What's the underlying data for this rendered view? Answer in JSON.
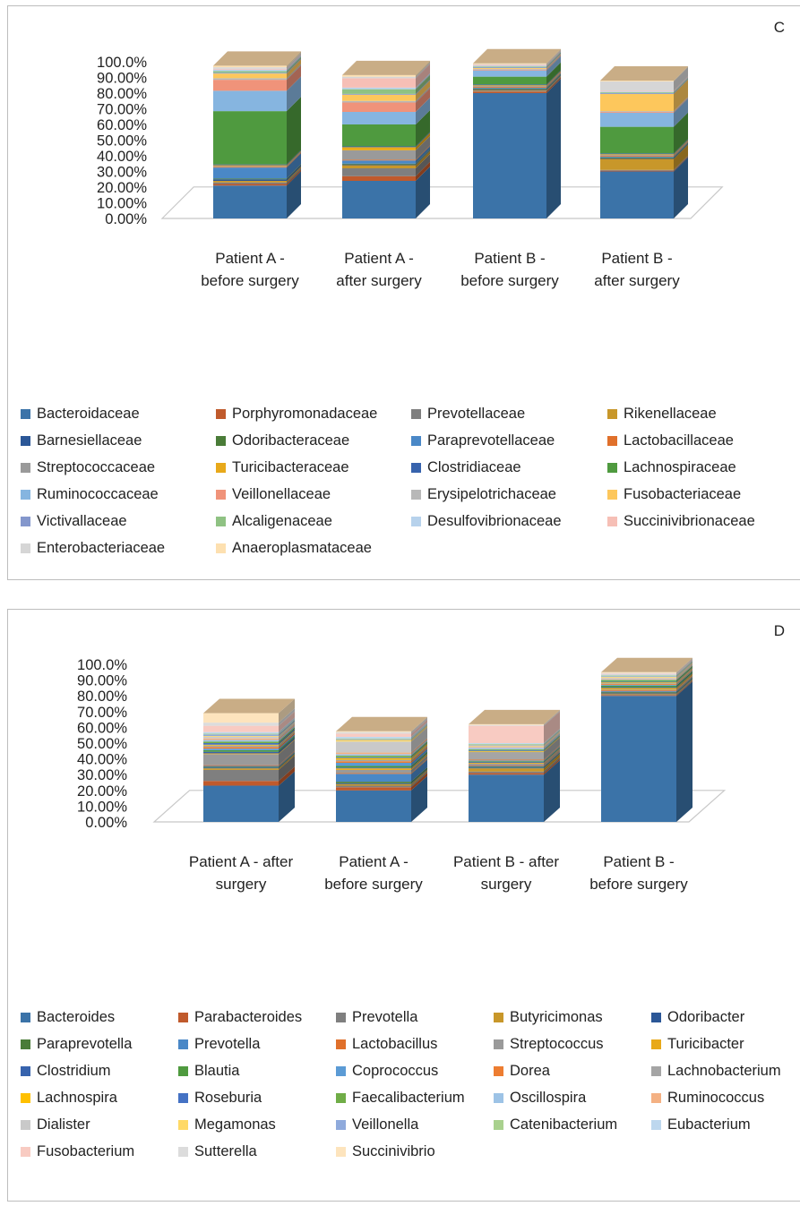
{
  "chart_data": [
    {
      "type": "bar",
      "stacked": true,
      "three_d": true,
      "panel_label": "C",
      "title": "",
      "xlabel": "",
      "ylabel": "",
      "ylim": [
        0,
        100
      ],
      "y_ticks": [
        "0.00%",
        "10.00%",
        "20.00%",
        "30.00%",
        "40.00%",
        "50.00%",
        "60.00%",
        "70.00%",
        "80.00%",
        "90.00%",
        "100.0%"
      ],
      "categories": [
        [
          "Patient A -",
          "before surgery"
        ],
        [
          "Patient A -",
          "after surgery"
        ],
        [
          "Patient B -",
          "before surgery"
        ],
        [
          "Patient B -",
          "after surgery"
        ]
      ],
      "legend_position": "bottom",
      "legend_columns": 4,
      "series": [
        {
          "name": "Bacteroidaceae",
          "color": "#3b73a8",
          "values": [
            21,
            24,
            80,
            30
          ]
        },
        {
          "name": "Porphyromonadaceae",
          "color": "#c05a2c",
          "values": [
            1,
            3,
            1,
            0.5
          ]
        },
        {
          "name": "Prevotellaceae",
          "color": "#7f7f7f",
          "values": [
            1,
            5,
            0.5,
            0.5
          ]
        },
        {
          "name": "Rikenellaceae",
          "color": "#c8972a",
          "values": [
            1,
            2,
            0.5,
            7
          ]
        },
        {
          "name": "Barnesiellaceae",
          "color": "#2b5797",
          "values": [
            1,
            0.5,
            0.5,
            0.5
          ]
        },
        {
          "name": "Odoribacteraceae",
          "color": "#4a7c38",
          "values": [
            0.5,
            0.5,
            0.5,
            0.5
          ]
        },
        {
          "name": "Paraprevotellaceae",
          "color": "#4a88c7",
          "values": [
            7,
            2,
            0.5,
            0.5
          ]
        },
        {
          "name": "Lactobacillaceae",
          "color": "#e0702b",
          "values": [
            0.5,
            0.5,
            0.5,
            0.5
          ]
        },
        {
          "name": "Streptococcaceae",
          "color": "#9a9a9a",
          "values": [
            0.5,
            6,
            0.5,
            0.5
          ]
        },
        {
          "name": "Turicibacteraceae",
          "color": "#e8a91a",
          "values": [
            0.5,
            2,
            0.5,
            0.5
          ]
        },
        {
          "name": "Clostridiaceae",
          "color": "#3763ad",
          "values": [
            0.5,
            0.5,
            0.5,
            0.5
          ]
        },
        {
          "name": "Lachnospiraceae",
          "color": "#4f9a3f",
          "values": [
            34,
            14,
            5,
            17
          ]
        },
        {
          "name": "Ruminococcaceae",
          "color": "#86b5e0",
          "values": [
            13,
            8,
            4,
            9
          ]
        },
        {
          "name": "Veillonellaceae",
          "color": "#f0937a",
          "values": [
            7,
            6,
            0.5,
            0.5
          ]
        },
        {
          "name": "Erysipelotrichaceae",
          "color": "#b8b8b8",
          "values": [
            1,
            1,
            0.5,
            0.5
          ]
        },
        {
          "name": "Fusobacteriaceae",
          "color": "#fdc75c",
          "values": [
            3,
            4,
            0.5,
            11
          ]
        },
        {
          "name": "Victivallaceae",
          "color": "#8497cc",
          "values": [
            0.5,
            0.5,
            0.5,
            0.5
          ]
        },
        {
          "name": "Alcaligenaceae",
          "color": "#8fc283",
          "values": [
            1,
            3,
            0.5,
            0.5
          ]
        },
        {
          "name": "Desulfovibrionaceae",
          "color": "#b7d2ec",
          "values": [
            1,
            1,
            0.5,
            0.5
          ]
        },
        {
          "name": "Succinivibrionaceae",
          "color": "#f6bfb6",
          "values": [
            0.5,
            6,
            0.5,
            0.5
          ]
        },
        {
          "name": "Enterobacteriaceae",
          "color": "#d6d6d6",
          "values": [
            1,
            1,
            0.5,
            6
          ]
        },
        {
          "name": "Anaeroplasmataceae",
          "color": "#fde0b0",
          "values": [
            1,
            1,
            0.5,
            0.5
          ]
        }
      ]
    },
    {
      "type": "bar",
      "stacked": true,
      "three_d": true,
      "panel_label": "D",
      "title": "",
      "xlabel": "",
      "ylabel": "",
      "ylim": [
        0,
        100
      ],
      "y_ticks": [
        "0.00%",
        "10.00%",
        "20.00%",
        "30.00%",
        "40.00%",
        "50.00%",
        "60.00%",
        "70.00%",
        "80.00%",
        "90.00%",
        "100.0%"
      ],
      "categories": [
        [
          "Patient A - after",
          "surgery"
        ],
        [
          "Patient A -",
          "before surgery"
        ],
        [
          "Patient B - after",
          "surgery"
        ],
        [
          "Patient B -",
          "before surgery"
        ]
      ],
      "legend_position": "bottom",
      "legend_columns": 5,
      "series": [
        {
          "name": "Bacteroides",
          "color": "#3b73a8",
          "values": [
            23,
            20,
            30,
            80
          ]
        },
        {
          "name": "Parabacteroides",
          "color": "#c05a2c",
          "values": [
            3,
            2,
            1,
            0.5
          ]
        },
        {
          "name": "Prevotella",
          "color": "#7f7f7f",
          "values": [
            7,
            1,
            1,
            0.5
          ]
        },
        {
          "name": "Butyricimonas",
          "color": "#c8972a",
          "values": [
            1,
            1,
            2,
            0.5
          ]
        },
        {
          "name": "Odoribacter",
          "color": "#2b5797",
          "values": [
            0.5,
            0.5,
            0.5,
            0.5
          ]
        },
        {
          "name": "Paraprevotella",
          "color": "#4a7c38",
          "values": [
            0.5,
            1,
            0.5,
            0.5
          ]
        },
        {
          "name": "Prevotella",
          "color": "#4a88c7",
          "values": [
            0.5,
            5,
            0.5,
            0.5
          ]
        },
        {
          "name": "Lactobacillus",
          "color": "#e0702b",
          "values": [
            0.5,
            0.5,
            0.5,
            0.5
          ]
        },
        {
          "name": "Streptococcus",
          "color": "#9a9a9a",
          "values": [
            7,
            2,
            1,
            0.5
          ]
        },
        {
          "name": "Turicibacter",
          "color": "#e8a91a",
          "values": [
            0.5,
            1,
            0.5,
            1
          ]
        },
        {
          "name": "Clostridium",
          "color": "#3763ad",
          "values": [
            1,
            0.5,
            0.5,
            0.5
          ]
        },
        {
          "name": "Blautia",
          "color": "#4f9a3f",
          "values": [
            1,
            1,
            0.5,
            1
          ]
        },
        {
          "name": "Coprococcus",
          "color": "#5b9bd5",
          "values": [
            1,
            2,
            0.5,
            0.5
          ]
        },
        {
          "name": "Dorea",
          "color": "#ed7d31",
          "values": [
            1,
            1,
            0.5,
            0.5
          ]
        },
        {
          "name": "Lachnobacterium",
          "color": "#a5a5a5",
          "values": [
            1,
            1,
            5,
            0.5
          ]
        },
        {
          "name": "Lachnospira",
          "color": "#ffc000",
          "values": [
            0.5,
            1,
            0.5,
            0.5
          ]
        },
        {
          "name": "Roseburia",
          "color": "#4472c4",
          "values": [
            1,
            0.5,
            0.5,
            0.5
          ]
        },
        {
          "name": "Faecalibacterium",
          "color": "#70ad47",
          "values": [
            1,
            1,
            0.5,
            1
          ]
        },
        {
          "name": "Oscillospira",
          "color": "#9dc3e6",
          "values": [
            1,
            1,
            1,
            0.5
          ]
        },
        {
          "name": "Ruminococcus",
          "color": "#f4b183",
          "values": [
            1,
            1,
            0.5,
            0.5
          ]
        },
        {
          "name": "Dialister",
          "color": "#c9c9c9",
          "values": [
            1,
            7,
            0.5,
            0.5
          ]
        },
        {
          "name": "Megamonas",
          "color": "#ffd966",
          "values": [
            0.5,
            1,
            0.5,
            0.5
          ]
        },
        {
          "name": "Veillonella",
          "color": "#8faadc",
          "values": [
            1,
            0.5,
            0.5,
            0.5
          ]
        },
        {
          "name": "Catenibacterium",
          "color": "#a9d18e",
          "values": [
            0.5,
            0.5,
            0.5,
            0.5
          ]
        },
        {
          "name": "Eubacterium",
          "color": "#bdd7ee",
          "values": [
            1,
            1,
            0.5,
            0.5
          ]
        },
        {
          "name": "Fusobacterium",
          "color": "#f8cbc2",
          "values": [
            4,
            2,
            11,
            0.5
          ]
        },
        {
          "name": "Sutterella",
          "color": "#dcdcdc",
          "values": [
            2,
            1,
            0.5,
            0.5
          ]
        },
        {
          "name": "Succinivibrio",
          "color": "#fde4bd",
          "values": [
            6,
            0.5,
            0.5,
            0.5
          ]
        }
      ]
    }
  ]
}
